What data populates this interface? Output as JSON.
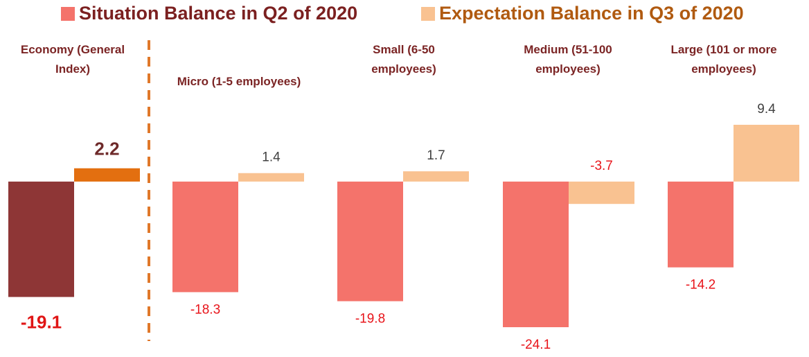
{
  "chart_data": {
    "type": "bar",
    "categories": [
      "Economy (General Index)",
      "Micro (1-5 employees)",
      "Small (6-50 employees)",
      "Medium (51-100 employees)",
      "Large (101 or more employees)"
    ],
    "series": [
      {
        "name": "Situation Balance in Q2 of 2020",
        "color": "#f4736b",
        "colors": [
          "#8e3636",
          "#f4736b",
          "#f4736b",
          "#f4736b",
          "#f4736b"
        ],
        "values": [
          -19.1,
          -18.3,
          -19.8,
          -24.1,
          -14.2
        ]
      },
      {
        "name": "Expectation Balance in Q3 of 2020",
        "color": "#f9c291",
        "colors": [
          "#e36f10",
          "#f9c291",
          "#f9c291",
          "#f9c291",
          "#f9c291"
        ],
        "values": [
          2.2,
          1.4,
          1.7,
          -3.7,
          9.4
        ]
      }
    ]
  }
}
